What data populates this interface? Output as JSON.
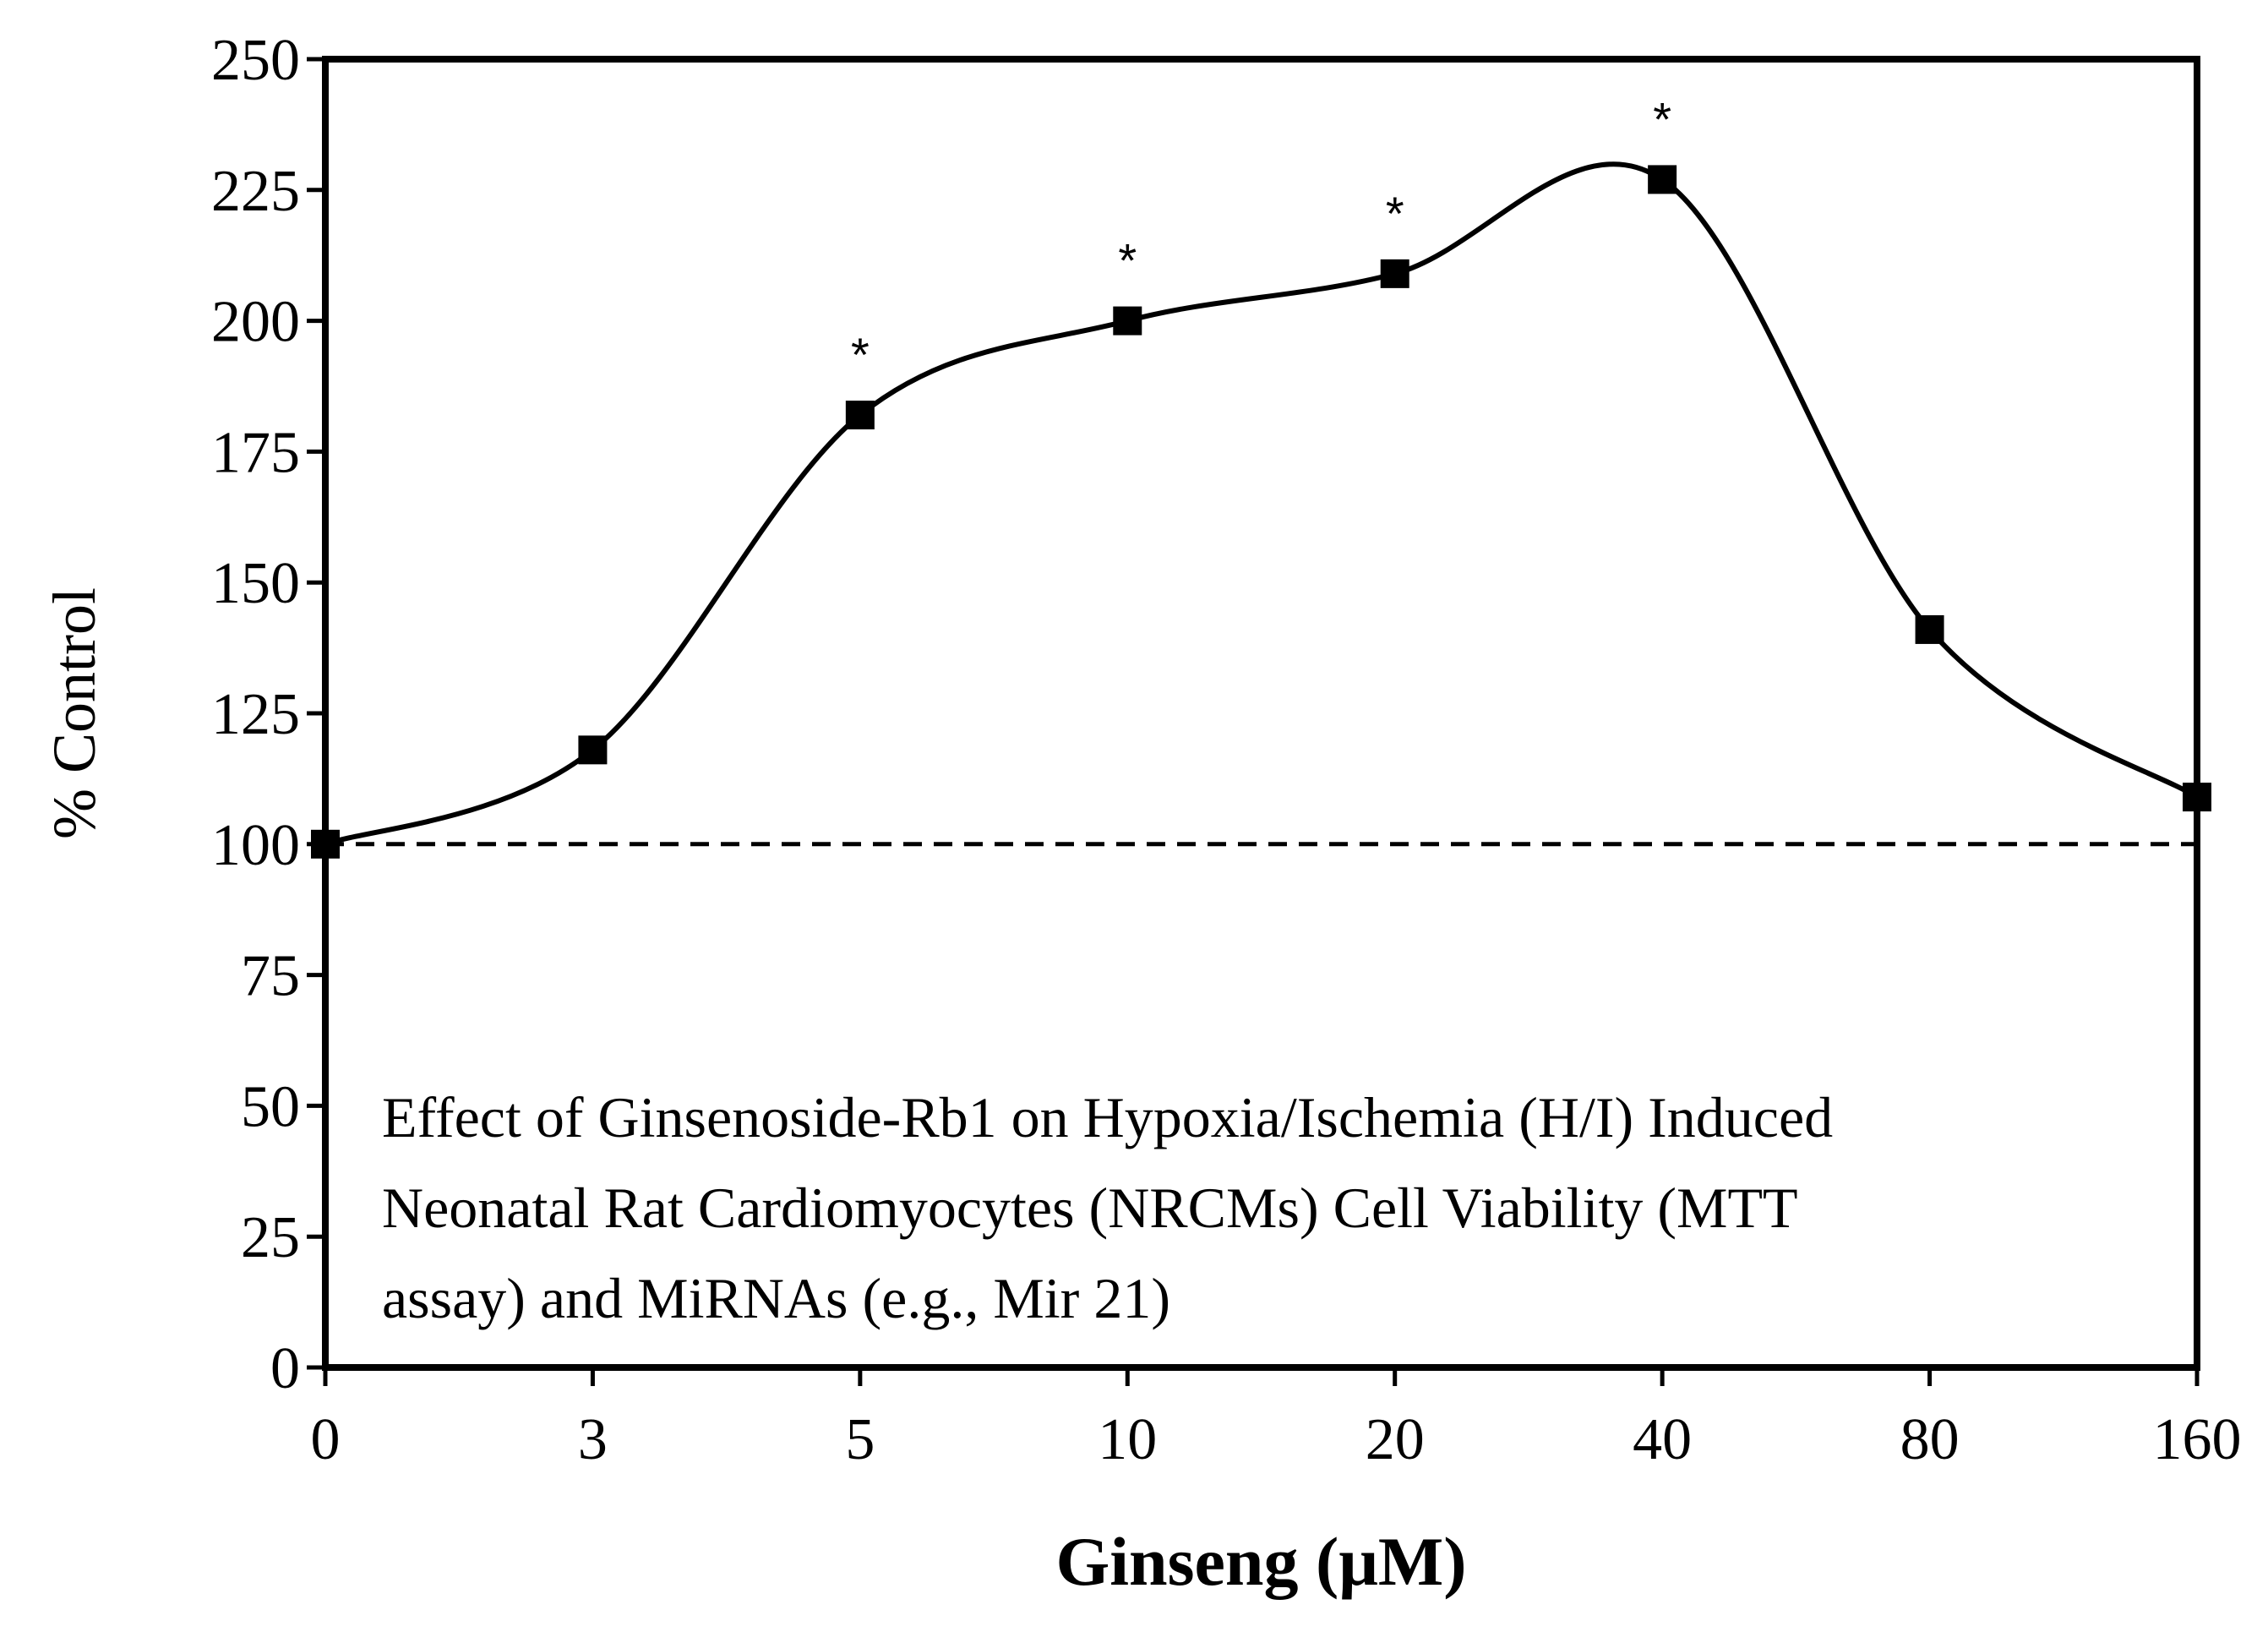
{
  "chart_data": {
    "type": "line",
    "title": "",
    "xlabel": "Ginseng (μM)",
    "ylabel": "% Control",
    "categories": [
      "0",
      "3",
      "5",
      "10",
      "20",
      "40",
      "80",
      "160"
    ],
    "series": [
      {
        "name": "% Control",
        "values": [
          100,
          118,
          182,
          200,
          209,
          227,
          141,
          109
        ],
        "significant": [
          false,
          false,
          true,
          true,
          true,
          true,
          false,
          false
        ],
        "significance_marker": "*"
      }
    ],
    "ylim": [
      0,
      250
    ],
    "yticks": [
      0,
      25,
      50,
      75,
      100,
      125,
      150,
      175,
      200,
      225,
      250
    ],
    "reference_line": {
      "y": 100,
      "style": "dashed"
    },
    "annotation_lines": [
      "Effect of Ginsenoside-Rb1 on Hypoxia/Ischemia (H/I) Induced",
      "Neonatal Rat Cardiomyocytes (NRCMs) Cell Viability (MTT",
      "assay) and MiRNAs (e.g., Mir 21)"
    ],
    "grid": false,
    "colors": {
      "line": "#000000",
      "marker": "#000000",
      "frame": "#000000"
    }
  }
}
